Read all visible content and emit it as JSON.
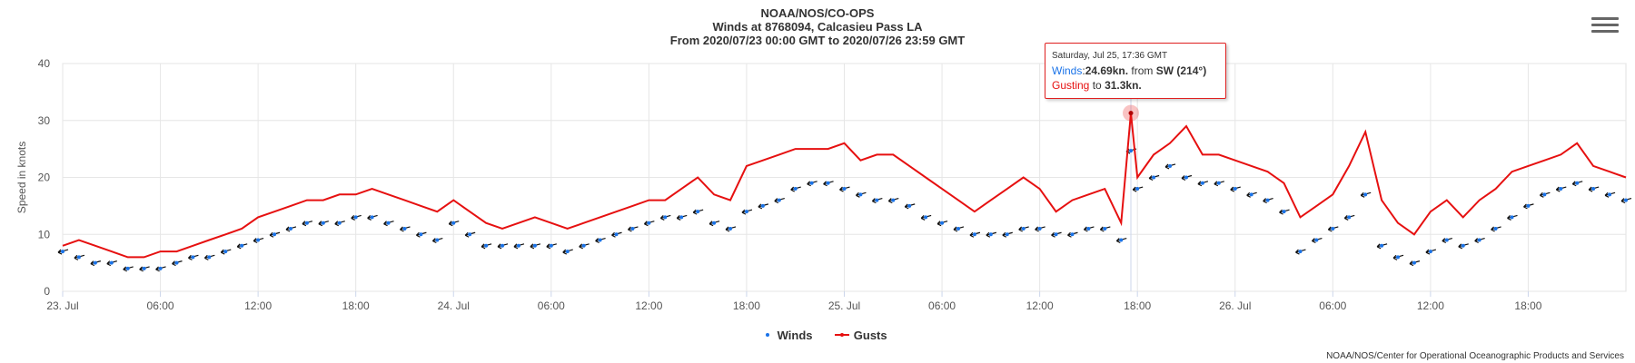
{
  "header": {
    "line1": "NOAA/NOS/CO-OPS",
    "line2": "Winds at 8768094, Calcasieu Pass LA",
    "line3": "From 2020/07/23 00:00 GMT to 2020/07/26 23:59 GMT"
  },
  "tooltip": {
    "date": "Saturday, Jul 25, 17:36 GMT",
    "winds_label": "Winds",
    "winds_value": "24.69kn.",
    "winds_from": "from",
    "winds_dir": "SW (214°)",
    "gust_label": "Gusting",
    "gust_to": "to",
    "gust_value": "31.3kn."
  },
  "legend": {
    "winds": "Winds",
    "gusts": "Gusts"
  },
  "credits": "NOAA/NOS/Center for Operational Oceanographic Products and Services",
  "colors": {
    "winds": "#1a73e8",
    "gusts": "#e61010",
    "arrows": "#111111",
    "grid": "#e6e6e6"
  },
  "chart_data": {
    "type": "line",
    "ylabel": "Speed in knots",
    "ylim": [
      0,
      40
    ],
    "yticks": [
      "0",
      "10",
      "20",
      "30",
      "40"
    ],
    "xlim_hours": [
      0,
      96
    ],
    "xticks": [
      {
        "h": 0,
        "label": "23. Jul"
      },
      {
        "h": 6,
        "label": "06:00"
      },
      {
        "h": 12,
        "label": "12:00"
      },
      {
        "h": 18,
        "label": "18:00"
      },
      {
        "h": 24,
        "label": "24. Jul"
      },
      {
        "h": 30,
        "label": "06:00"
      },
      {
        "h": 36,
        "label": "12:00"
      },
      {
        "h": 42,
        "label": "18:00"
      },
      {
        "h": 48,
        "label": "25. Jul"
      },
      {
        "h": 54,
        "label": "06:00"
      },
      {
        "h": 60,
        "label": "12:00"
      },
      {
        "h": 66,
        "label": "18:00"
      },
      {
        "h": 72,
        "label": "26. Jul"
      },
      {
        "h": 78,
        "label": "06:00"
      },
      {
        "h": 84,
        "label": "12:00"
      },
      {
        "h": 90,
        "label": "18:00"
      }
    ],
    "grid": true,
    "legend_position": "bottom-center",
    "highlight": {
      "h": 65.6,
      "gust": 31.3,
      "wind": 24.69,
      "dir": 214
    },
    "series": [
      {
        "name": "Gusts",
        "x": [
          0,
          1,
          2,
          3,
          4,
          5,
          6,
          7,
          8,
          9,
          10,
          11,
          12,
          13,
          14,
          15,
          16,
          17,
          18,
          19,
          20,
          21,
          22,
          23,
          24,
          25,
          26,
          27,
          28,
          29,
          30,
          31,
          32,
          33,
          34,
          35,
          36,
          37,
          38,
          39,
          40,
          41,
          42,
          43,
          44,
          45,
          46,
          47,
          48,
          49,
          50,
          51,
          52,
          53,
          54,
          55,
          56,
          57,
          58,
          59,
          60,
          61,
          62,
          63,
          64,
          65,
          65.6,
          66,
          67,
          68,
          69,
          70,
          71,
          72,
          73,
          74,
          75,
          76,
          77,
          78,
          79,
          80,
          81,
          82,
          83,
          84,
          85,
          86,
          87,
          88,
          89,
          90,
          91,
          92,
          93,
          94,
          95,
          96
        ],
        "y": [
          8,
          9,
          8,
          7,
          6,
          6,
          7,
          7,
          8,
          9,
          10,
          11,
          13,
          14,
          15,
          16,
          16,
          17,
          17,
          18,
          17,
          16,
          15,
          14,
          16,
          14,
          12,
          11,
          12,
          13,
          12,
          11,
          12,
          13,
          14,
          15,
          16,
          16,
          18,
          20,
          17,
          16,
          22,
          23,
          24,
          25,
          25,
          25,
          26,
          23,
          24,
          24,
          22,
          20,
          18,
          16,
          14,
          16,
          18,
          20,
          18,
          14,
          16,
          17,
          18,
          12,
          31.3,
          20,
          24,
          26,
          29,
          24,
          24,
          23,
          22,
          21,
          19,
          13,
          15,
          17,
          22,
          28,
          16,
          12,
          10,
          14,
          16,
          13,
          16,
          18,
          21,
          22,
          23,
          24,
          26,
          22,
          21,
          20
        ],
        "color": "#e61010"
      },
      {
        "name": "Winds",
        "x": [
          0,
          1,
          2,
          3,
          4,
          5,
          6,
          7,
          8,
          9,
          10,
          11,
          12,
          13,
          14,
          15,
          16,
          17,
          18,
          19,
          20,
          21,
          22,
          23,
          24,
          25,
          26,
          27,
          28,
          29,
          30,
          31,
          32,
          33,
          34,
          35,
          36,
          37,
          38,
          39,
          40,
          41,
          42,
          43,
          44,
          45,
          46,
          47,
          48,
          49,
          50,
          51,
          52,
          53,
          54,
          55,
          56,
          57,
          58,
          59,
          60,
          61,
          62,
          63,
          64,
          65,
          65.6,
          66,
          67,
          68,
          69,
          70,
          71,
          72,
          73,
          74,
          75,
          76,
          77,
          78,
          79,
          80,
          81,
          82,
          83,
          84,
          85,
          86,
          87,
          88,
          89,
          90,
          91,
          92,
          93,
          94,
          95,
          96
        ],
        "y": [
          7,
          6,
          5,
          5,
          4,
          4,
          4,
          5,
          6,
          6,
          7,
          8,
          9,
          10,
          11,
          12,
          12,
          12,
          13,
          13,
          12,
          11,
          10,
          9,
          12,
          10,
          8,
          8,
          8,
          8,
          8,
          7,
          8,
          9,
          10,
          11,
          12,
          13,
          13,
          14,
          12,
          11,
          14,
          15,
          16,
          18,
          19,
          19,
          18,
          17,
          16,
          16,
          15,
          13,
          12,
          11,
          10,
          10,
          10,
          11,
          11,
          10,
          10,
          11,
          11,
          9,
          24.69,
          18,
          20,
          22,
          20,
          19,
          19,
          18,
          17,
          16,
          14,
          7,
          9,
          11,
          13,
          17,
          8,
          6,
          5,
          7,
          9,
          8,
          9,
          11,
          13,
          15,
          17,
          18,
          19,
          18,
          17,
          16
        ],
        "color": "#1a73e8"
      }
    ]
  }
}
